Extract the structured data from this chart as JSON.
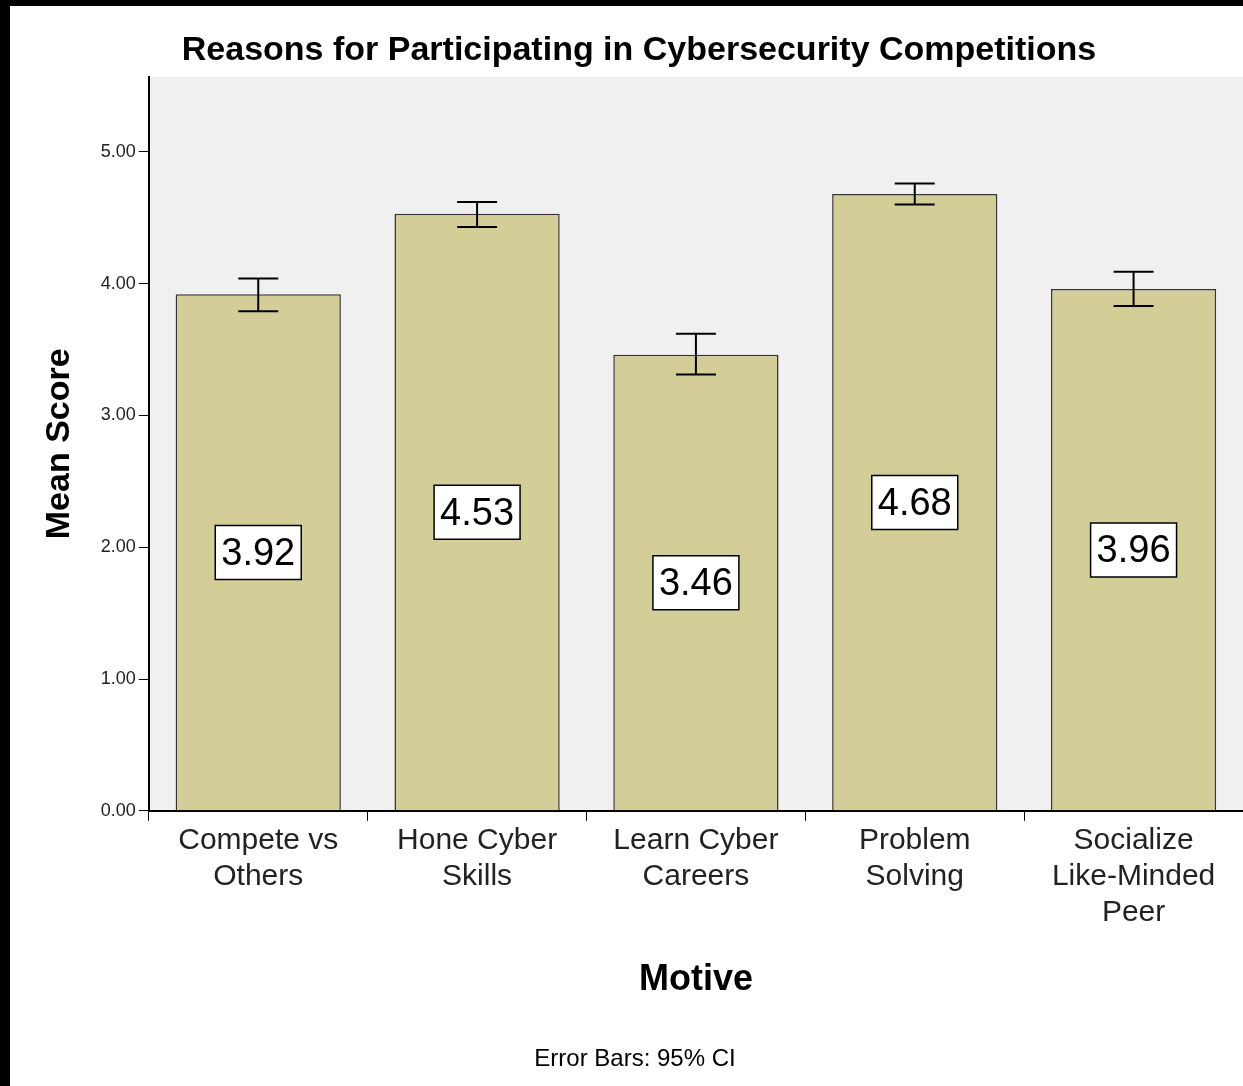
{
  "chart_data": {
    "type": "bar",
    "title": "Reasons for Participating in Cybersecurity Competitions",
    "xlabel": "Motive",
    "ylabel": "Mean Score",
    "categories": [
      "Compete vs Others",
      "Hone Cyber Skills",
      "Learn Cyber Careers",
      "Problem Solving",
      "Socialize Like-Minded Peer"
    ],
    "values": [
      3.92,
      4.53,
      3.46,
      4.68,
      3.96
    ],
    "errors": [
      [
        3.79,
        4.04
      ],
      [
        4.43,
        4.62
      ],
      [
        3.31,
        3.62
      ],
      [
        4.6,
        4.76
      ],
      [
        3.83,
        4.09
      ]
    ],
    "color": "#d3ce97",
    "data_labels": true,
    "grid": false,
    "legend": false,
    "ylim": [
      0,
      5.57
    ],
    "yticks": [
      {
        "value": 0,
        "label": "0.00"
      },
      {
        "value": 1,
        "label": "1.00"
      },
      {
        "value": 2,
        "label": "2.00"
      },
      {
        "value": 3,
        "label": "3.00"
      },
      {
        "value": 4,
        "label": "4.00"
      },
      {
        "value": 5,
        "label": "5.00"
      }
    ],
    "annotations": [
      "Error Bars: 95% CI"
    ]
  }
}
